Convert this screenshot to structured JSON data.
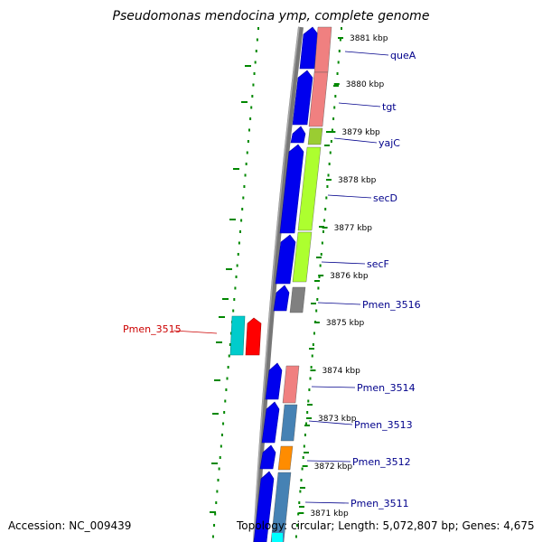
{
  "title": "Pseudomonas mendocina ymp, complete genome",
  "footer": {
    "accession": "Accession: NC_009439",
    "stats": "Topology: circular; Length: 5,072,807 bp; Genes: 4,675"
  },
  "colors": {
    "cds": "#0000ee",
    "backbone": "#888888",
    "gc_skew": "#008800",
    "label_blue": "#00008b",
    "label_red": "#cc0000"
  },
  "ticks": [
    "3881 kbp",
    "3880 kbp",
    "3879 kbp",
    "3878 kbp",
    "3877 kbp",
    "3876 kbp",
    "3875 kbp",
    "3874 kbp",
    "3873 kbp",
    "3872 kbp",
    "3871 kbp"
  ],
  "genes": [
    {
      "name": "queA",
      "color": "#f08080"
    },
    {
      "name": "tgt",
      "color": "#f08080"
    },
    {
      "name": "yajC",
      "color": "#9acd32"
    },
    {
      "name": "secD",
      "color": "#adff2f"
    },
    {
      "name": "secF",
      "color": "#adff2f"
    },
    {
      "name": "Pmen_3516",
      "color": "#808080"
    },
    {
      "name": "Pmen_3515",
      "color": "#ff0000"
    },
    {
      "name": "Pmen_3514",
      "color": "#f08080"
    },
    {
      "name": "Pmen_3513",
      "color": "#4682b4"
    },
    {
      "name": "Pmen_3512",
      "color": "#ff8c00"
    },
    {
      "name": "Pmen_3511",
      "color": "#4682b4"
    }
  ]
}
